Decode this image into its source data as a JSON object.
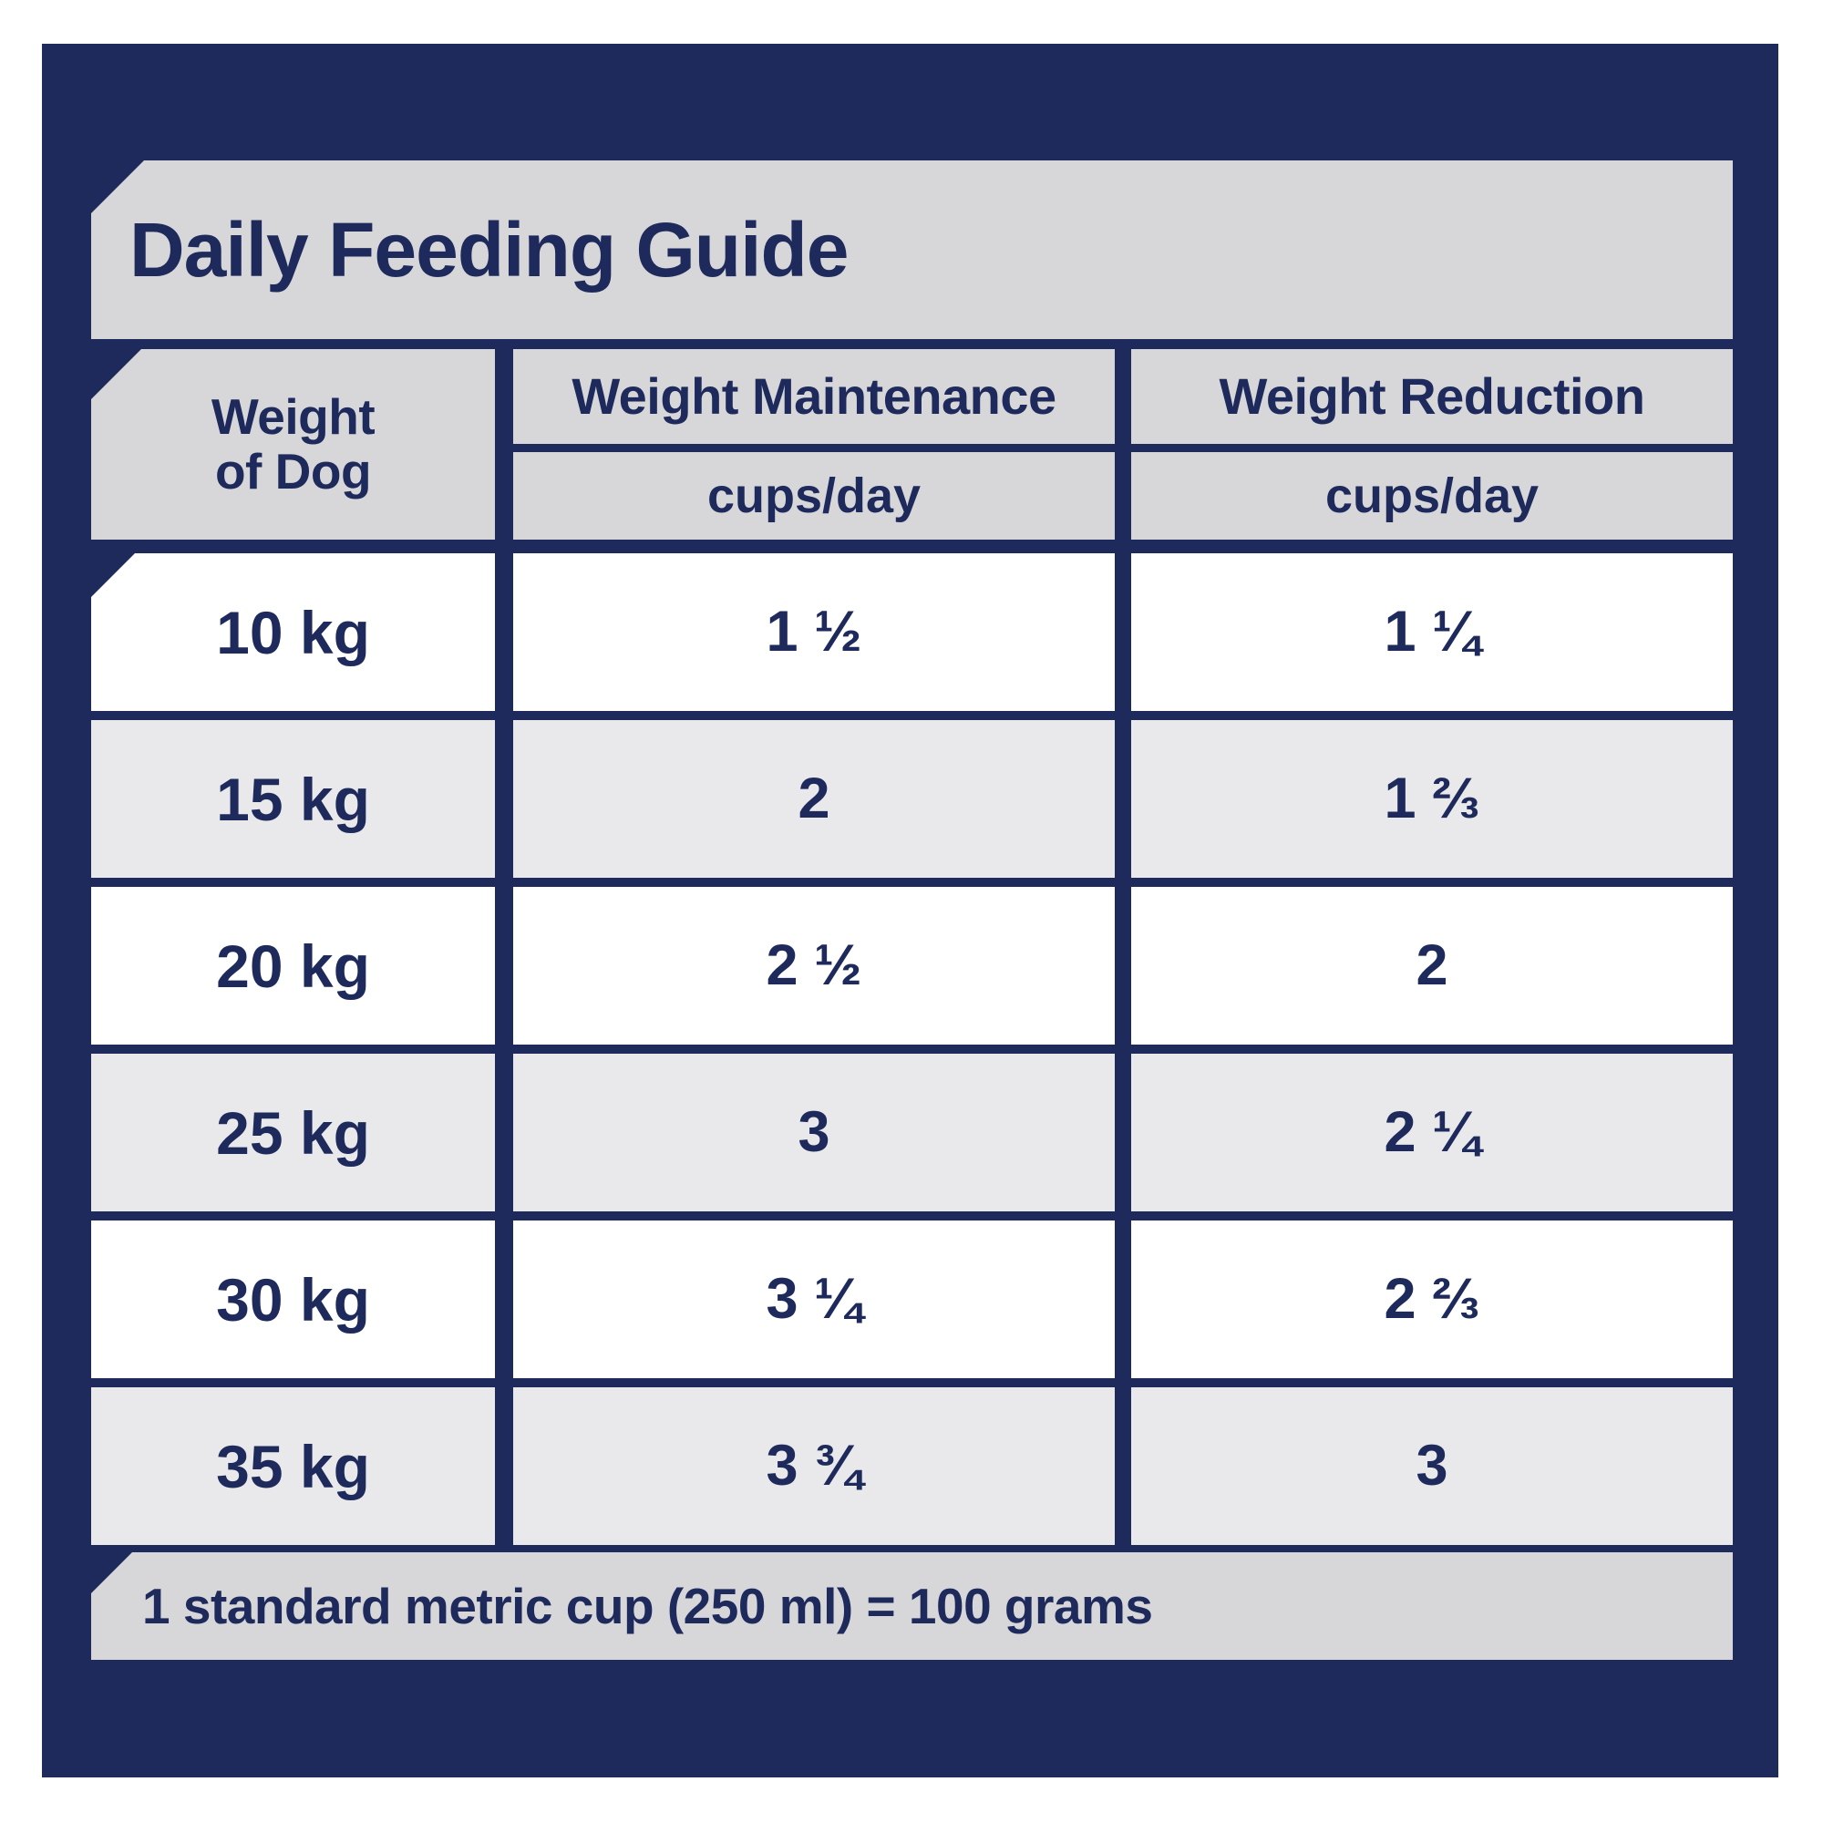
{
  "title": "Daily Feeding Guide",
  "colors": {
    "navy": "#1e2a5b",
    "textNavy": "#1e2a5b",
    "panelGray": "#d7d7d9",
    "rowGray": "#e9e9eb",
    "rowWhite": "#ffffff"
  },
  "table": {
    "columns": [
      {
        "label_line1": "Weight",
        "label_line2": "of Dog"
      },
      {
        "label": "Weight Maintenance",
        "unit": "cups/day"
      },
      {
        "label": "Weight Reduction",
        "unit": "cups/day"
      }
    ],
    "rows": [
      {
        "weight": "10 kg",
        "maintenance": "1 ½",
        "reduction": "1 ¼"
      },
      {
        "weight": "15 kg",
        "maintenance": "2",
        "reduction": "1 ⅔"
      },
      {
        "weight": "20 kg",
        "maintenance": "2 ½",
        "reduction": "2"
      },
      {
        "weight": "25 kg",
        "maintenance": "3",
        "reduction": "2 ¼"
      },
      {
        "weight": "30 kg",
        "maintenance": "3 ¼",
        "reduction": "2 ⅔"
      },
      {
        "weight": "35 kg",
        "maintenance": "3 ¾",
        "reduction": "3"
      }
    ]
  },
  "footer_note": "1 standard metric cup (250 ml) = 100 grams",
  "chart_data": {
    "type": "table",
    "title": "Daily Feeding Guide",
    "columns": [
      "Weight of Dog",
      "Weight Maintenance (cups/day)",
      "Weight Reduction (cups/day)"
    ],
    "rows": [
      [
        "10 kg",
        "1 1/2",
        "1 1/4"
      ],
      [
        "15 kg",
        "2",
        "1 2/3"
      ],
      [
        "20 kg",
        "2 1/2",
        "2"
      ],
      [
        "25 kg",
        "3",
        "2 1/4"
      ],
      [
        "30 kg",
        "3 1/4",
        "2 2/3"
      ],
      [
        "35 kg",
        "3 3/4",
        "3"
      ]
    ],
    "weights_kg": [
      10,
      15,
      20,
      25,
      30,
      35
    ],
    "maintenance_cups_per_day": [
      1.5,
      2,
      2.5,
      3,
      3.25,
      3.75
    ],
    "reduction_cups_per_day": [
      1.25,
      1.67,
      2,
      2.25,
      2.67,
      3
    ],
    "note": "1 standard metric cup (250 ml) = 100 grams"
  }
}
